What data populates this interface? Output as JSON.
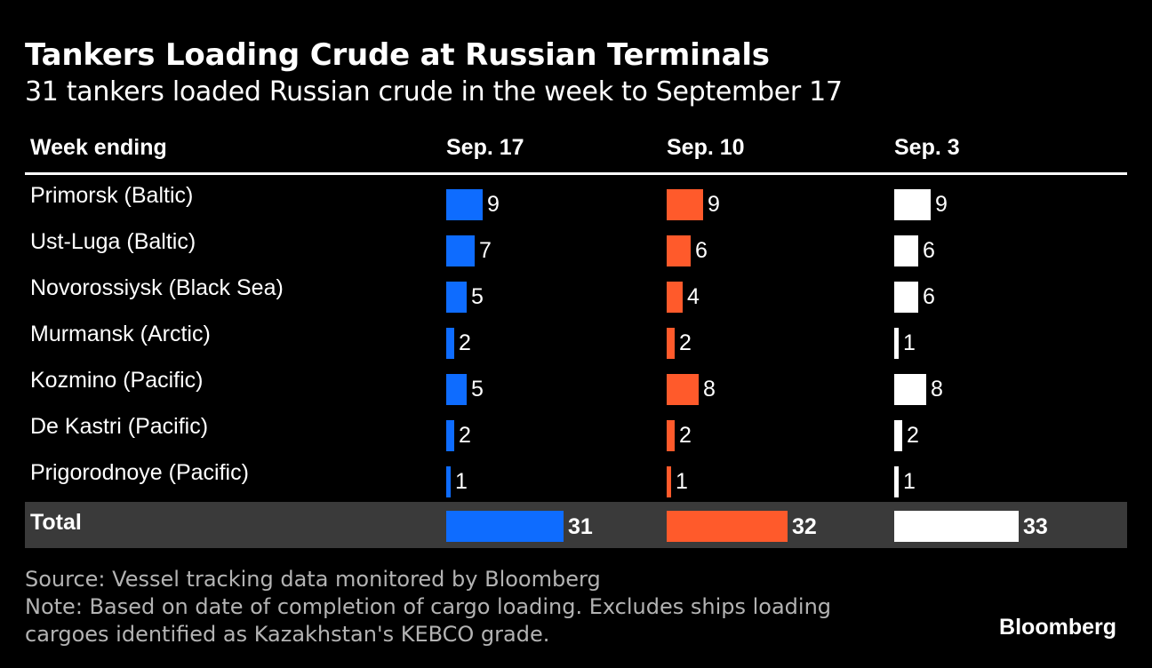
{
  "title": "Tankers Loading Crude at Russian Terminals",
  "subtitle": "31 tankers loaded Russian crude in the week to September 17",
  "header_label": "Week ending",
  "colors": {
    "sep17": "#0e6cff",
    "sep10": "#ff5a2b",
    "sep3": "#ffffff"
  },
  "chart_data": {
    "type": "table",
    "columns": [
      "Sep. 17",
      "Sep. 10",
      "Sep. 3"
    ],
    "rows": [
      {
        "label": "Primorsk (Baltic)",
        "values": [
          9,
          9,
          9
        ]
      },
      {
        "label": "Ust-Luga (Baltic)",
        "values": [
          7,
          6,
          6
        ]
      },
      {
        "label": "Novorossiysk (Black Sea)",
        "values": [
          5,
          4,
          6
        ]
      },
      {
        "label": "Murmansk (Arctic)",
        "values": [
          2,
          2,
          1
        ]
      },
      {
        "label": "Kozmino (Pacific)",
        "values": [
          5,
          8,
          8
        ]
      },
      {
        "label": "De Kastri (Pacific)",
        "values": [
          2,
          2,
          2
        ]
      },
      {
        "label": "Prigorodnoye (Pacific)",
        "values": [
          1,
          1,
          1
        ]
      }
    ],
    "total": {
      "label": "Total",
      "values": [
        31,
        32,
        33
      ]
    }
  },
  "footer": {
    "source": "Source: Vessel tracking data monitored by Bloomberg",
    "note_line1": "Note: Based on date of completion of cargo loading. Excludes ships loading",
    "note_line2": "cargoes identified as Kazakhstan's KEBCO grade."
  },
  "brand": "Bloomberg"
}
